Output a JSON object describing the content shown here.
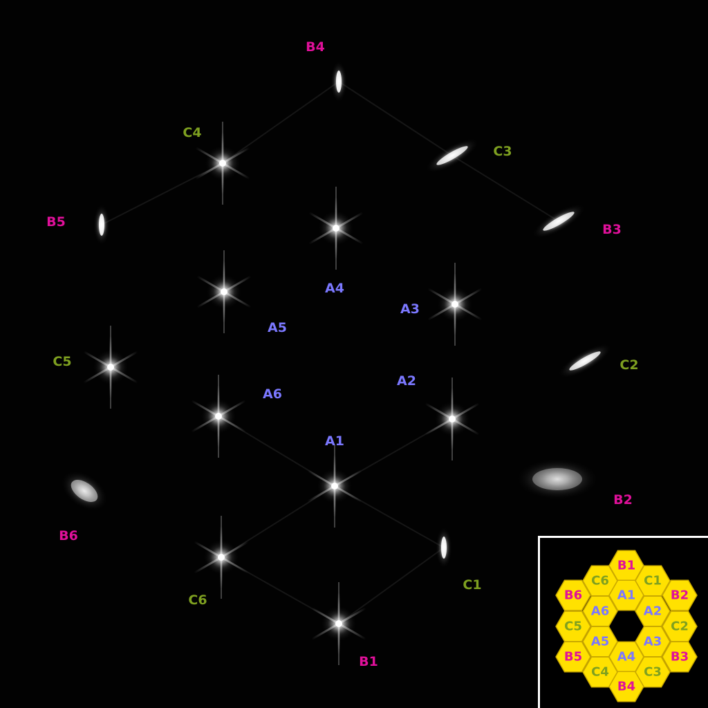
{
  "colors": {
    "A": "#7b78ff",
    "B": "#e0109a",
    "C": "#7ea020",
    "hex_fill": "#ffe100",
    "hex_stroke": "#c9a800",
    "background": "#020202"
  },
  "spots": [
    {
      "label": "A1",
      "ring": "A"
    },
    {
      "label": "A2",
      "ring": "A"
    },
    {
      "label": "A3",
      "ring": "A"
    },
    {
      "label": "A4",
      "ring": "A"
    },
    {
      "label": "A5",
      "ring": "A"
    },
    {
      "label": "A6",
      "ring": "A"
    },
    {
      "label": "B1",
      "ring": "B"
    },
    {
      "label": "B2",
      "ring": "B"
    },
    {
      "label": "B3",
      "ring": "B"
    },
    {
      "label": "B4",
      "ring": "B"
    },
    {
      "label": "B5",
      "ring": "B"
    },
    {
      "label": "B6",
      "ring": "B"
    },
    {
      "label": "C1",
      "ring": "C"
    },
    {
      "label": "C2",
      "ring": "C"
    },
    {
      "label": "C3",
      "ring": "C"
    },
    {
      "label": "C4",
      "ring": "C"
    },
    {
      "label": "C5",
      "ring": "C"
    },
    {
      "label": "C6",
      "ring": "C"
    }
  ],
  "inset_segments": [
    {
      "label": "B1",
      "ring": "B"
    },
    {
      "label": "C6",
      "ring": "C"
    },
    {
      "label": "C1",
      "ring": "C"
    },
    {
      "label": "B6",
      "ring": "B"
    },
    {
      "label": "A1",
      "ring": "A"
    },
    {
      "label": "B2",
      "ring": "B"
    },
    {
      "label": "A6",
      "ring": "A"
    },
    {
      "label": "A2",
      "ring": "A"
    },
    {
      "label": "C5",
      "ring": "C"
    },
    {
      "label": "C2",
      "ring": "C"
    },
    {
      "label": "A5",
      "ring": "A"
    },
    {
      "label": "A3",
      "ring": "A"
    },
    {
      "label": "B5",
      "ring": "B"
    },
    {
      "label": "A4",
      "ring": "A"
    },
    {
      "label": "B3",
      "ring": "B"
    },
    {
      "label": "C4",
      "ring": "C"
    },
    {
      "label": "C3",
      "ring": "C"
    },
    {
      "label": "B4",
      "ring": "B"
    }
  ]
}
